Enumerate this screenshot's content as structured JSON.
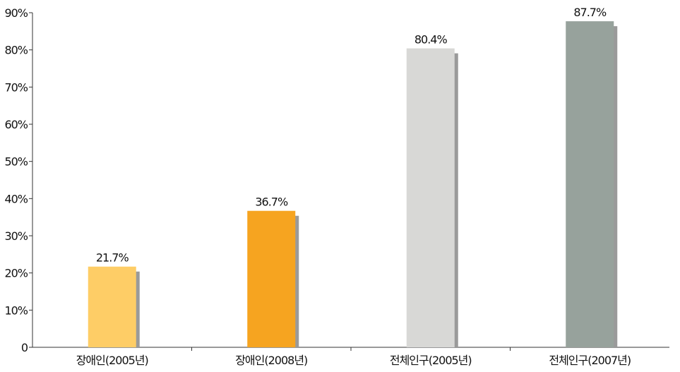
{
  "chart_data": {
    "type": "bar",
    "title": "",
    "xlabel": "",
    "ylabel": "",
    "categories": [
      "장애인(2005년)",
      "장애인(2008년)",
      "전체인구(2005년)",
      "전체인구(2007년)"
    ],
    "values": [
      21.7,
      36.7,
      80.4,
      87.7
    ],
    "data_labels": [
      "21.7%",
      "36.7%",
      "80.4%",
      "87.7%"
    ],
    "colors": [
      "#fecd66",
      "#f6a420",
      "#d8d8d6",
      "#97a29c"
    ],
    "shadow_color": "#9a9a9a",
    "ylim": [
      0,
      90
    ],
    "yticks": [
      0,
      10,
      20,
      30,
      40,
      50,
      60,
      70,
      80,
      90
    ],
    "ytick_labels": [
      "0",
      "10%",
      "20%",
      "30%",
      "40%",
      "50%",
      "60%",
      "70%",
      "80%",
      "90%"
    ],
    "grid": false,
    "legend": "none"
  }
}
